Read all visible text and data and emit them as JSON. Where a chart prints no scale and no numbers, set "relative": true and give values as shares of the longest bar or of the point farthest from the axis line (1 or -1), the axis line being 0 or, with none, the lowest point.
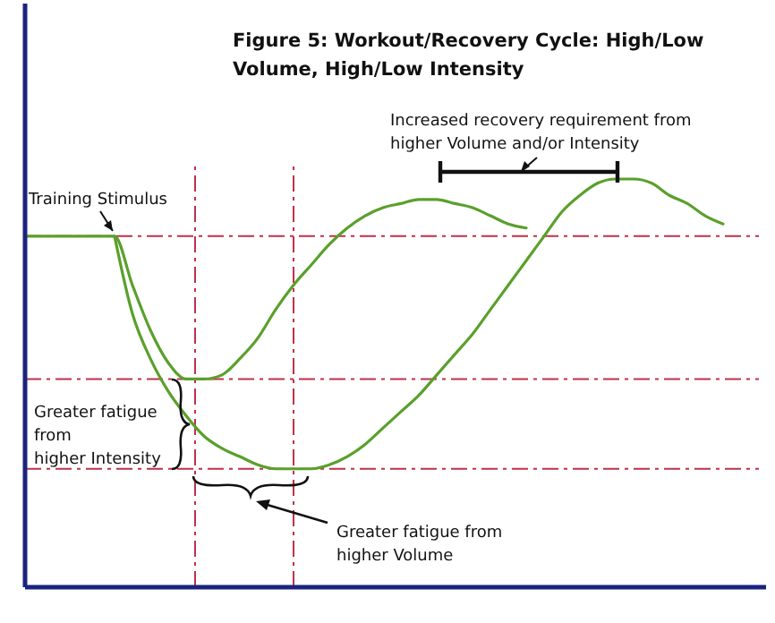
{
  "chart_data": {
    "type": "line",
    "title": "Figure 5:  Workout/Recovery Cycle: High/Low\nVolume, High/Low Intensity",
    "relative": true,
    "line_style": "solid",
    "marker": "none",
    "categories": [
      null,
      null,
      null,
      null,
      null,
      null,
      null,
      null,
      null,
      null,
      null,
      null,
      null,
      null,
      null,
      null,
      null,
      null,
      null,
      null,
      null,
      null,
      null,
      null,
      null,
      null,
      null,
      null,
      null,
      null,
      null,
      null,
      null,
      null,
      null,
      null,
      null,
      null,
      null,
      null,
      null,
      null
    ],
    "series": [
      {
        "color": "#5aa02c",
        "values": [
          0.86,
          0.86,
          0.86,
          0.86,
          0.86,
          0.86,
          0.74,
          0.63,
          0.55,
          0.51,
          0.51,
          0.52,
          0.56,
          0.61,
          0.68,
          0.74,
          0.79,
          0.84,
          0.88,
          0.91,
          0.93,
          0.94,
          0.95,
          0.95,
          0.94,
          0.93,
          0.91,
          0.89,
          0.88,
          null,
          null,
          null,
          null,
          null,
          null,
          null,
          null,
          null,
          null,
          null,
          null,
          null
        ]
      },
      {
        "color": "#5aa02c",
        "values": [
          null,
          null,
          null,
          null,
          null,
          0.86,
          0.67,
          0.56,
          0.48,
          0.42,
          0.37,
          0.34,
          0.32,
          0.3,
          0.29,
          0.29,
          0.29,
          0.3,
          0.32,
          0.35,
          0.39,
          0.43,
          0.47,
          0.52,
          0.57,
          0.62,
          0.68,
          0.74,
          0.8,
          0.86,
          0.92,
          0.96,
          0.99,
          1,
          1,
          0.99,
          0.96,
          0.94,
          0.91,
          0.89,
          null,
          null
        ]
      }
    ],
    "ref_lines": [
      {
        "axis": "y",
        "value": 0.86,
        "color": "#c0304a",
        "line_style": "dashed"
      },
      {
        "axis": "y",
        "value": 0.51,
        "color": "#c0304a",
        "line_style": "dashed"
      },
      {
        "axis": "y",
        "value": 0.29,
        "color": "#c0304a",
        "line_style": "dashed"
      }
    ],
    "annotations": [
      "Training Stimulus",
      "Greater fatigue\nfrom\nhigher Intensity",
      "Greater fatigue from\nhigher Volume",
      "Increased recovery requirement from\nhigher Volume and/or Intensity"
    ]
  }
}
